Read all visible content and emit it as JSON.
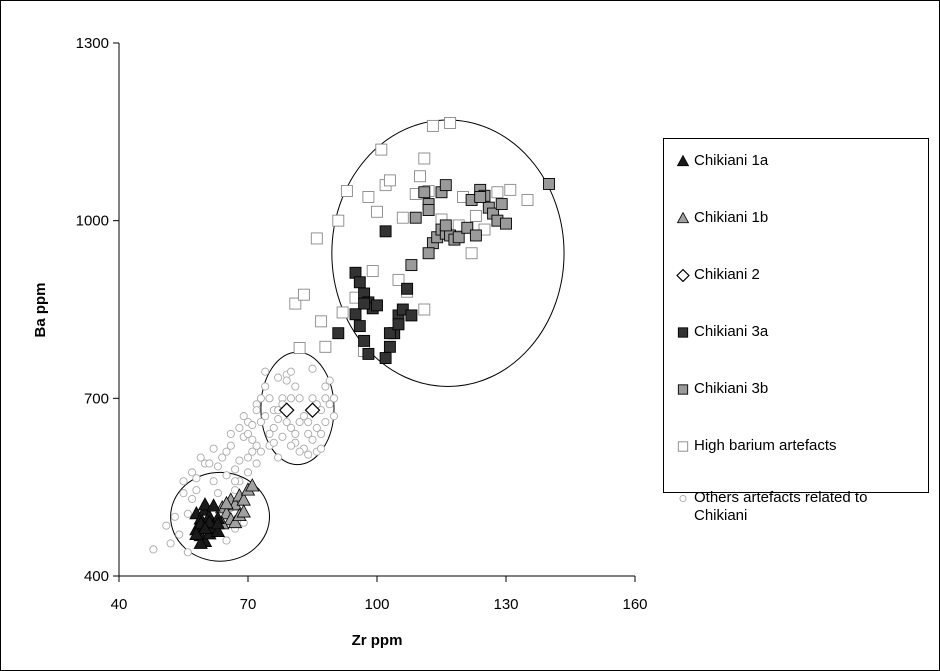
{
  "chart_data": {
    "type": "scatter",
    "title": "",
    "xlabel": "Zr ppm",
    "ylabel": "Ba ppm",
    "xlim": [
      40,
      160
    ],
    "ylim": [
      400,
      1300
    ],
    "xticks": [
      40,
      70,
      100,
      130,
      160
    ],
    "yticks": [
      400,
      700,
      1000,
      1300
    ],
    "grid": false,
    "legend_position": "right",
    "series": [
      {
        "name": "Chikiani 1a",
        "marker": "triangle",
        "color": "#1a1a1a",
        "points": [
          [
            58,
            505
          ],
          [
            59,
            496
          ],
          [
            60,
            511
          ],
          [
            61,
            500
          ],
          [
            62,
            486
          ],
          [
            63,
            497
          ],
          [
            58,
            478
          ],
          [
            59,
            468
          ],
          [
            60,
            458
          ],
          [
            61,
            471
          ],
          [
            62,
            482
          ],
          [
            63,
            475
          ],
          [
            59,
            488
          ],
          [
            60,
            520
          ],
          [
            62,
            518
          ],
          [
            61,
            490
          ],
          [
            60,
            480
          ],
          [
            59,
            455
          ],
          [
            58,
            470
          ],
          [
            63,
            488
          ]
        ]
      },
      {
        "name": "Chikiani 1b",
        "marker": "triangle",
        "color": "#a0a0a0",
        "points": [
          [
            64,
            515
          ],
          [
            65,
            505
          ],
          [
            66,
            528
          ],
          [
            67,
            520
          ],
          [
            68,
            535
          ],
          [
            69,
            528
          ],
          [
            70,
            545
          ],
          [
            71,
            552
          ],
          [
            66,
            495
          ],
          [
            67,
            490
          ],
          [
            68,
            502
          ],
          [
            64,
            488
          ],
          [
            65,
            522
          ],
          [
            69,
            508
          ]
        ]
      },
      {
        "name": "Chikiani 2",
        "marker": "diamond",
        "color": "#ffffff",
        "points": [
          [
            79,
            680
          ],
          [
            85,
            680
          ]
        ]
      },
      {
        "name": "Chikiani 3a",
        "marker": "square",
        "color": "#333333",
        "points": [
          [
            95,
            912
          ],
          [
            96,
            896
          ],
          [
            97,
            877
          ],
          [
            98,
            862
          ],
          [
            99,
            852
          ],
          [
            100,
            857
          ],
          [
            95,
            842
          ],
          [
            96,
            822
          ],
          [
            97,
            797
          ],
          [
            98,
            775
          ],
          [
            102,
            982
          ],
          [
            103,
            787
          ],
          [
            104,
            810
          ],
          [
            105,
            840
          ],
          [
            106,
            850
          ],
          [
            107,
            885
          ],
          [
            108,
            840
          ],
          [
            103,
            810
          ],
          [
            102,
            768
          ],
          [
            91,
            810
          ],
          [
            97,
            860
          ],
          [
            105,
            825
          ]
        ]
      },
      {
        "name": "Chikiani 3b",
        "marker": "square",
        "color": "#9a9a9a",
        "points": [
          [
            109,
            1005
          ],
          [
            111,
            1048
          ],
          [
            112,
            1028
          ],
          [
            112,
            1018
          ],
          [
            113,
            962
          ],
          [
            114,
            972
          ],
          [
            115,
            1048
          ],
          [
            116,
            1060
          ],
          [
            115,
            985
          ],
          [
            116,
            978
          ],
          [
            117,
            975
          ],
          [
            118,
            968
          ],
          [
            119,
            972
          ],
          [
            121,
            988
          ],
          [
            122,
            1035
          ],
          [
            123,
            975
          ],
          [
            124,
            1052
          ],
          [
            125,
            1042
          ],
          [
            126,
            1022
          ],
          [
            127,
            1012
          ],
          [
            128,
            1000
          ],
          [
            129,
            1028
          ],
          [
            130,
            995
          ],
          [
            140,
            1062
          ],
          [
            108,
            925
          ],
          [
            112,
            945
          ],
          [
            116,
            992
          ],
          [
            124,
            1040
          ]
        ]
      },
      {
        "name": "High barium artefacts",
        "marker": "square",
        "color": "#ffffff",
        "points": [
          [
            81,
            860
          ],
          [
            82,
            785
          ],
          [
            83,
            875
          ],
          [
            86,
            970
          ],
          [
            87,
            830
          ],
          [
            88,
            787
          ],
          [
            91,
            1000
          ],
          [
            92,
            845
          ],
          [
            93,
            1050
          ],
          [
            98,
            1040
          ],
          [
            99,
            915
          ],
          [
            100,
            1015
          ],
          [
            101,
            1120
          ],
          [
            102,
            1060
          ],
          [
            103,
            1068
          ],
          [
            106,
            1005
          ],
          [
            107,
            880
          ],
          [
            109,
            1045
          ],
          [
            110,
            1075
          ],
          [
            111,
            1105
          ],
          [
            112,
            1050
          ],
          [
            113,
            1160
          ],
          [
            115,
            1002
          ],
          [
            117,
            1165
          ],
          [
            119,
            992
          ],
          [
            120,
            1040
          ],
          [
            122,
            945
          ],
          [
            123,
            1008
          ],
          [
            125,
            985
          ],
          [
            128,
            1048
          ],
          [
            131,
            1052
          ],
          [
            135,
            1035
          ],
          [
            95,
            870
          ],
          [
            97,
            780
          ],
          [
            105,
            900
          ],
          [
            111,
            850
          ]
        ]
      },
      {
        "name": "Others artefacts related to\nChikiani",
        "marker": "circle",
        "color": "#ffffff",
        "points": [
          [
            48,
            445
          ],
          [
            52,
            455
          ],
          [
            54,
            470
          ],
          [
            56,
            440
          ],
          [
            55,
            560
          ],
          [
            57,
            575
          ],
          [
            58,
            545
          ],
          [
            60,
            590
          ],
          [
            62,
            560
          ],
          [
            63,
            540
          ],
          [
            64,
            600
          ],
          [
            65,
            570
          ],
          [
            66,
            620
          ],
          [
            67,
            580
          ],
          [
            68,
            595
          ],
          [
            69,
            635
          ],
          [
            70,
            660
          ],
          [
            71,
            610
          ],
          [
            72,
            690
          ],
          [
            73,
            700
          ],
          [
            74,
            720
          ],
          [
            75,
            640
          ],
          [
            76,
            680
          ],
          [
            77,
            665
          ],
          [
            78,
            700
          ],
          [
            79,
            740
          ],
          [
            80,
            650
          ],
          [
            81,
            625
          ],
          [
            82,
            660
          ],
          [
            83,
            615
          ],
          [
            84,
            640
          ],
          [
            85,
            700
          ],
          [
            86,
            650
          ],
          [
            87,
            680
          ],
          [
            88,
            720
          ],
          [
            89,
            690
          ],
          [
            90,
            670
          ],
          [
            66,
            515
          ],
          [
            67,
            545
          ],
          [
            68,
            560
          ],
          [
            70,
            575
          ],
          [
            72,
            590
          ],
          [
            73,
            610
          ],
          [
            75,
            620
          ],
          [
            76,
            650
          ],
          [
            78,
            635
          ],
          [
            80,
            700
          ],
          [
            81,
            720
          ],
          [
            82,
            610
          ],
          [
            84,
            605
          ],
          [
            85,
            630
          ],
          [
            86,
            610
          ],
          [
            87,
            640
          ],
          [
            88,
            700
          ],
          [
            89,
            730
          ],
          [
            74,
            745
          ],
          [
            77,
            735
          ],
          [
            79,
            730
          ],
          [
            80,
            745
          ],
          [
            71,
            655
          ],
          [
            69,
            670
          ],
          [
            65,
            610
          ],
          [
            63,
            585
          ],
          [
            61,
            590
          ],
          [
            59,
            600
          ],
          [
            57,
            530
          ],
          [
            55,
            540
          ],
          [
            60,
            520
          ],
          [
            53,
            500
          ],
          [
            51,
            485
          ],
          [
            56,
            505
          ],
          [
            62,
            470
          ],
          [
            65,
            460
          ],
          [
            67,
            480
          ],
          [
            69,
            490
          ],
          [
            70,
            600
          ],
          [
            72,
            620
          ],
          [
            75,
            700
          ],
          [
            77,
            600
          ],
          [
            83,
            670
          ],
          [
            85,
            750
          ],
          [
            84,
            660
          ],
          [
            81,
            640
          ],
          [
            76,
            625
          ],
          [
            73,
            660
          ],
          [
            71,
            630
          ],
          [
            68,
            650
          ],
          [
            66,
            640
          ],
          [
            62,
            615
          ],
          [
            58,
            565
          ],
          [
            74,
            670
          ],
          [
            78,
            690
          ],
          [
            82,
            700
          ],
          [
            86,
            690
          ],
          [
            90,
            700
          ],
          [
            88,
            660
          ],
          [
            87,
            615
          ],
          [
            80,
            620
          ],
          [
            79,
            660
          ],
          [
            77,
            680
          ],
          [
            72,
            680
          ],
          [
            70,
            640
          ],
          [
            67,
            560
          ]
        ]
      }
    ],
    "ellipses": [
      {
        "cx": 63.5,
        "cy": 500,
        "rx": 11.5,
        "ry": 75
      },
      {
        "cx": 81.5,
        "cy": 683,
        "rx": 8.5,
        "ry": 95
      },
      {
        "cx": 116.5,
        "cy": 945,
        "rx": 27,
        "ry": 225
      }
    ]
  }
}
